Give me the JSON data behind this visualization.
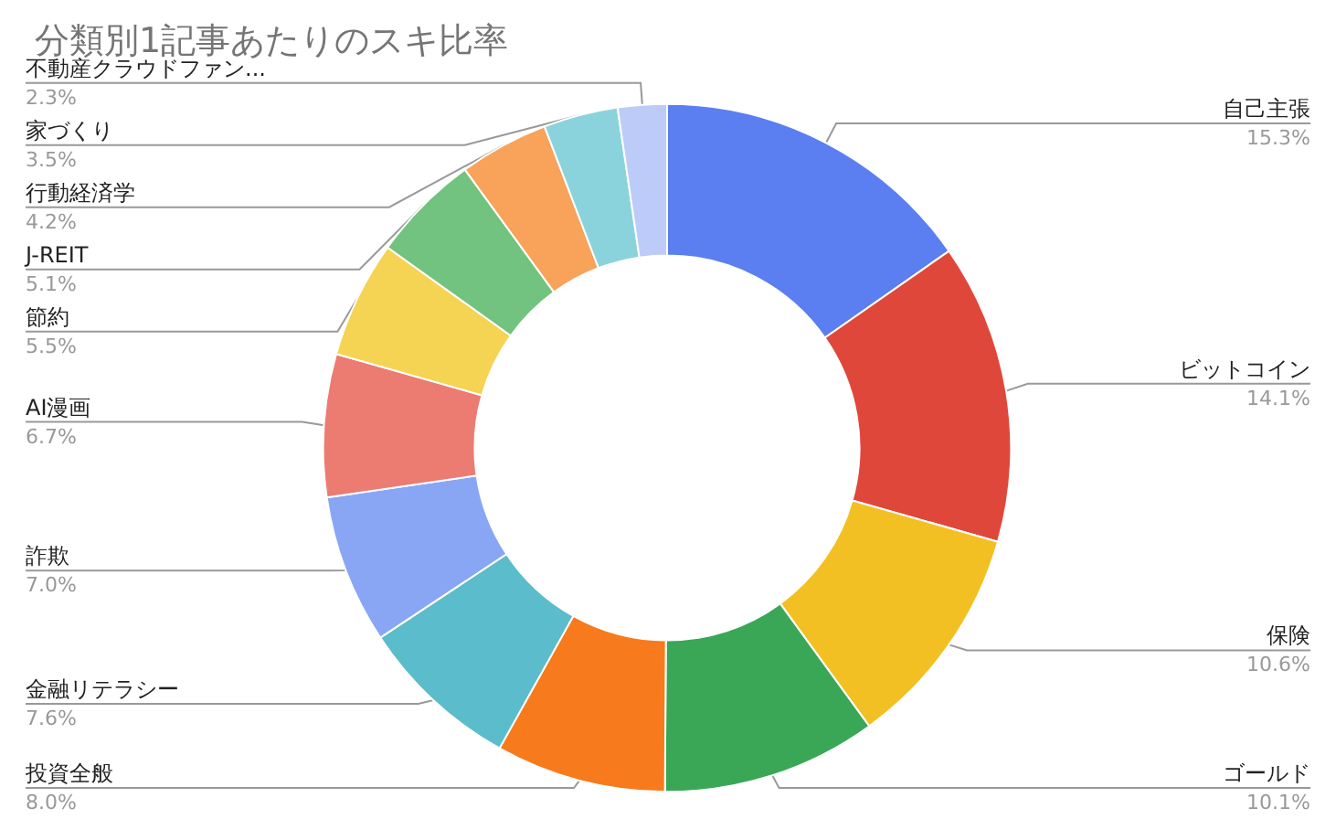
{
  "chart_data": {
    "type": "donut",
    "title": "分類別1記事あたりのスキ比率",
    "categories": [
      "自己主張",
      "ビットコイン",
      "保険",
      "ゴールド",
      "投資全般",
      "金融リテラシー",
      "詐欺",
      "AI漫画",
      "節約",
      "J-REIT",
      "行動経済学",
      "家づくり",
      "不動産クラウドファン..."
    ],
    "values": [
      15.3,
      14.1,
      10.6,
      10.1,
      8.0,
      7.6,
      7.0,
      6.7,
      5.5,
      5.1,
      4.2,
      3.5,
      2.3
    ],
    "value_labels": [
      "15.3%",
      "14.1%",
      "10.6%",
      "10.1%",
      "8.0%",
      "7.6%",
      "7.0%",
      "6.7%",
      "5.5%",
      "5.1%",
      "4.2%",
      "3.5%",
      "2.3%"
    ],
    "colors": [
      "#5b7ff0",
      "#e0473b",
      "#f3c023",
      "#3aa757",
      "#f77a1c",
      "#5bbccb",
      "#89a6f5",
      "#ec7b72",
      "#f5d353",
      "#71c37f",
      "#f8a25a",
      "#8bd3dc",
      "#bccbf7"
    ],
    "legend": false
  }
}
